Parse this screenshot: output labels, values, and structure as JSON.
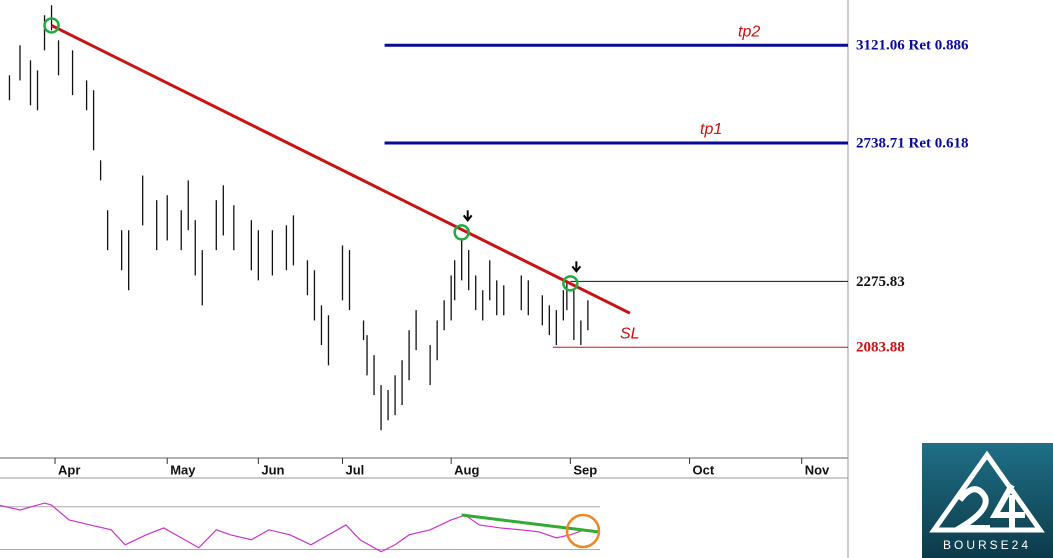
{
  "chart_data": {
    "type": "ohlc",
    "log_scale": true,
    "xlim": [
      -15.7,
      226.2
    ],
    "ylim": [
      1797,
      3316
    ],
    "xticks": [
      {
        "value": 0,
        "label": "Apr"
      },
      {
        "value": 32,
        "label": "May"
      },
      {
        "value": 58,
        "label": "Jun"
      },
      {
        "value": 82,
        "label": "Jul"
      },
      {
        "value": 113,
        "label": "Aug"
      },
      {
        "value": 147,
        "label": "Sep"
      },
      {
        "value": 181,
        "label": "Oct"
      },
      {
        "value": 213,
        "label": "Nov"
      }
    ],
    "bar_color": "#111111",
    "x": [
      -13,
      -10,
      -7,
      -5,
      -3,
      -1,
      1,
      5,
      9,
      11,
      13,
      15,
      19,
      21,
      25,
      29,
      32,
      36,
      38,
      40,
      42,
      46,
      48,
      51,
      56,
      58,
      62,
      66,
      68,
      72,
      74,
      76,
      78,
      82,
      84,
      88,
      89,
      91,
      93,
      95,
      97,
      99,
      101,
      103,
      107,
      109,
      111,
      113,
      114,
      116,
      118,
      120,
      122,
      124,
      126,
      128,
      133,
      135,
      139,
      141,
      143,
      145,
      146,
      148,
      150,
      152
    ],
    "high": [
      2998,
      3121,
      3059,
      3018,
      3249,
      3293,
      3142,
      3100,
      2978,
      2939,
      2676,
      2503,
      2437,
      2437,
      2622,
      2537,
      2554,
      2503,
      2605,
      2470,
      2373,
      2537,
      2588,
      2520,
      2470,
      2437,
      2437,
      2453,
      2486,
      2341,
      2310,
      2204,
      2175,
      2388,
      2373,
      2160,
      2118,
      2062,
      1981,
      1968,
      2007,
      2048,
      2132,
      2190,
      2090,
      2160,
      2219,
      2294,
      2341,
      2404,
      2373,
      2294,
      2249,
      2341,
      2279,
      2264,
      2294,
      2279,
      2234,
      2204,
      2190,
      2249,
      2279,
      2249,
      2160,
      2219
    ],
    "low": [
      2900,
      2978,
      2880,
      2861,
      3100,
      3184,
      2998,
      2920,
      2861,
      2712,
      2605,
      2373,
      2310,
      2249,
      2453,
      2373,
      2404,
      2373,
      2437,
      2294,
      2204,
      2373,
      2420,
      2373,
      2310,
      2279,
      2294,
      2310,
      2325,
      2234,
      2160,
      2090,
      2034,
      2219,
      2190,
      2104,
      2007,
      1955,
      1865,
      1890,
      1903,
      1929,
      1994,
      2076,
      1981,
      2048,
      2132,
      2160,
      2219,
      2279,
      2249,
      2190,
      2160,
      2219,
      2175,
      2175,
      2190,
      2175,
      2146,
      2118,
      2090,
      2160,
      2190,
      2104,
      2090,
      2132
    ],
    "trendline": {
      "x": [
        -1,
        164
      ],
      "values": [
        3205,
        2181
      ],
      "color": "#cc1111"
    },
    "touches": {
      "x": [
        -1,
        116,
        147
      ],
      "values": [
        3205,
        2430,
        2270
      ],
      "color": "#22aa44"
    },
    "levels": [
      {
        "name": "tp2",
        "value": 3121.06,
        "value_label": "3121.06 Ret 0.886",
        "color": "#0a0a9a",
        "start": 94
      },
      {
        "name": "tp1",
        "value": 2738.71,
        "value_label": "2738.71 Ret 0.618",
        "color": "#0a0a9a",
        "start": 94
      },
      {
        "value": 2275.83,
        "value_label": "2275.83",
        "color": "#111111",
        "start": 147
      },
      {
        "name": "SL",
        "value": 2083.88,
        "value_label": "2083.88",
        "color": "#cc1111",
        "start": 142
      }
    ],
    "indicator": {
      "ylim": [
        22,
        97
      ],
      "levels": [
        30,
        70
      ],
      "color": "#cc33cc",
      "x": [
        -16,
        -10,
        -3,
        -1,
        4,
        10,
        16,
        20,
        26,
        31,
        37,
        41,
        46,
        50,
        56,
        61,
        67,
        73,
        78,
        83,
        87,
        93,
        97,
        101,
        107,
        113,
        117,
        121,
        127,
        133,
        138,
        143,
        147,
        151,
        155
      ],
      "values": [
        71.6,
        67.0,
        73.5,
        71.6,
        57.7,
        53.0,
        48.4,
        34.4,
        43.7,
        50.2,
        39.1,
        31.6,
        48.4,
        43.7,
        39.1,
        48.4,
        43.7,
        34.4,
        43.7,
        53.0,
        39.1,
        27.9,
        34.4,
        43.7,
        48.4,
        57.7,
        62.3,
        53.0,
        50.2,
        48.4,
        46.5,
        40.9,
        43.7,
        48.4,
        46.5
      ],
      "divergence": {
        "x": [
          116,
          155
        ],
        "values": [
          62.3,
          46.5
        ],
        "color": "#33aa33"
      }
    },
    "logo": "BOURSE24"
  }
}
